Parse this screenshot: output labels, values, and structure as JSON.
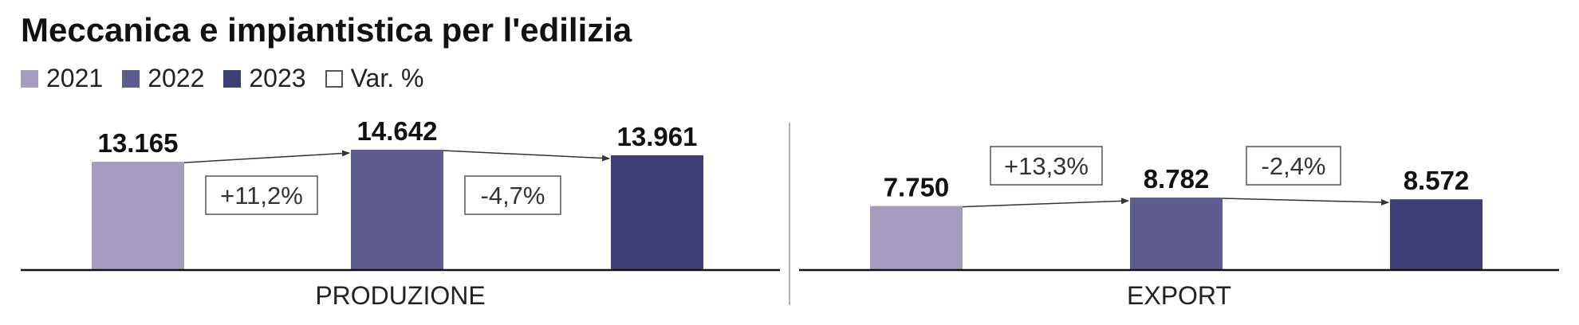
{
  "title": "Meccanica e impiantistica per l'edilizia",
  "legend": [
    {
      "label": "2021",
      "color": "#a59cbf"
    },
    {
      "label": "2022",
      "color": "#5f5c8f"
    },
    {
      "label": "2023",
      "color": "#3f3f77"
    },
    {
      "label": "Var. %",
      "color": "#ffffff",
      "outline": "#555555"
    }
  ],
  "chart_data": [
    {
      "type": "bar",
      "panel": "PRODUZIONE",
      "categories": [
        "2021",
        "2022",
        "2023"
      ],
      "values": [
        13165,
        14642,
        13961
      ],
      "value_labels": [
        "13.165",
        "14.642",
        "13.961"
      ],
      "changes": [
        "+11,2%",
        "-4,7%"
      ],
      "xlabel": "PRODUZIONE"
    },
    {
      "type": "bar",
      "panel": "EXPORT",
      "categories": [
        "2021",
        "2022",
        "2023"
      ],
      "values": [
        7750,
        8782,
        8572
      ],
      "value_labels": [
        "7.750",
        "8.782",
        "8.572"
      ],
      "changes": [
        "+13,3%",
        "-2,4%"
      ],
      "xlabel": "EXPORT"
    }
  ]
}
